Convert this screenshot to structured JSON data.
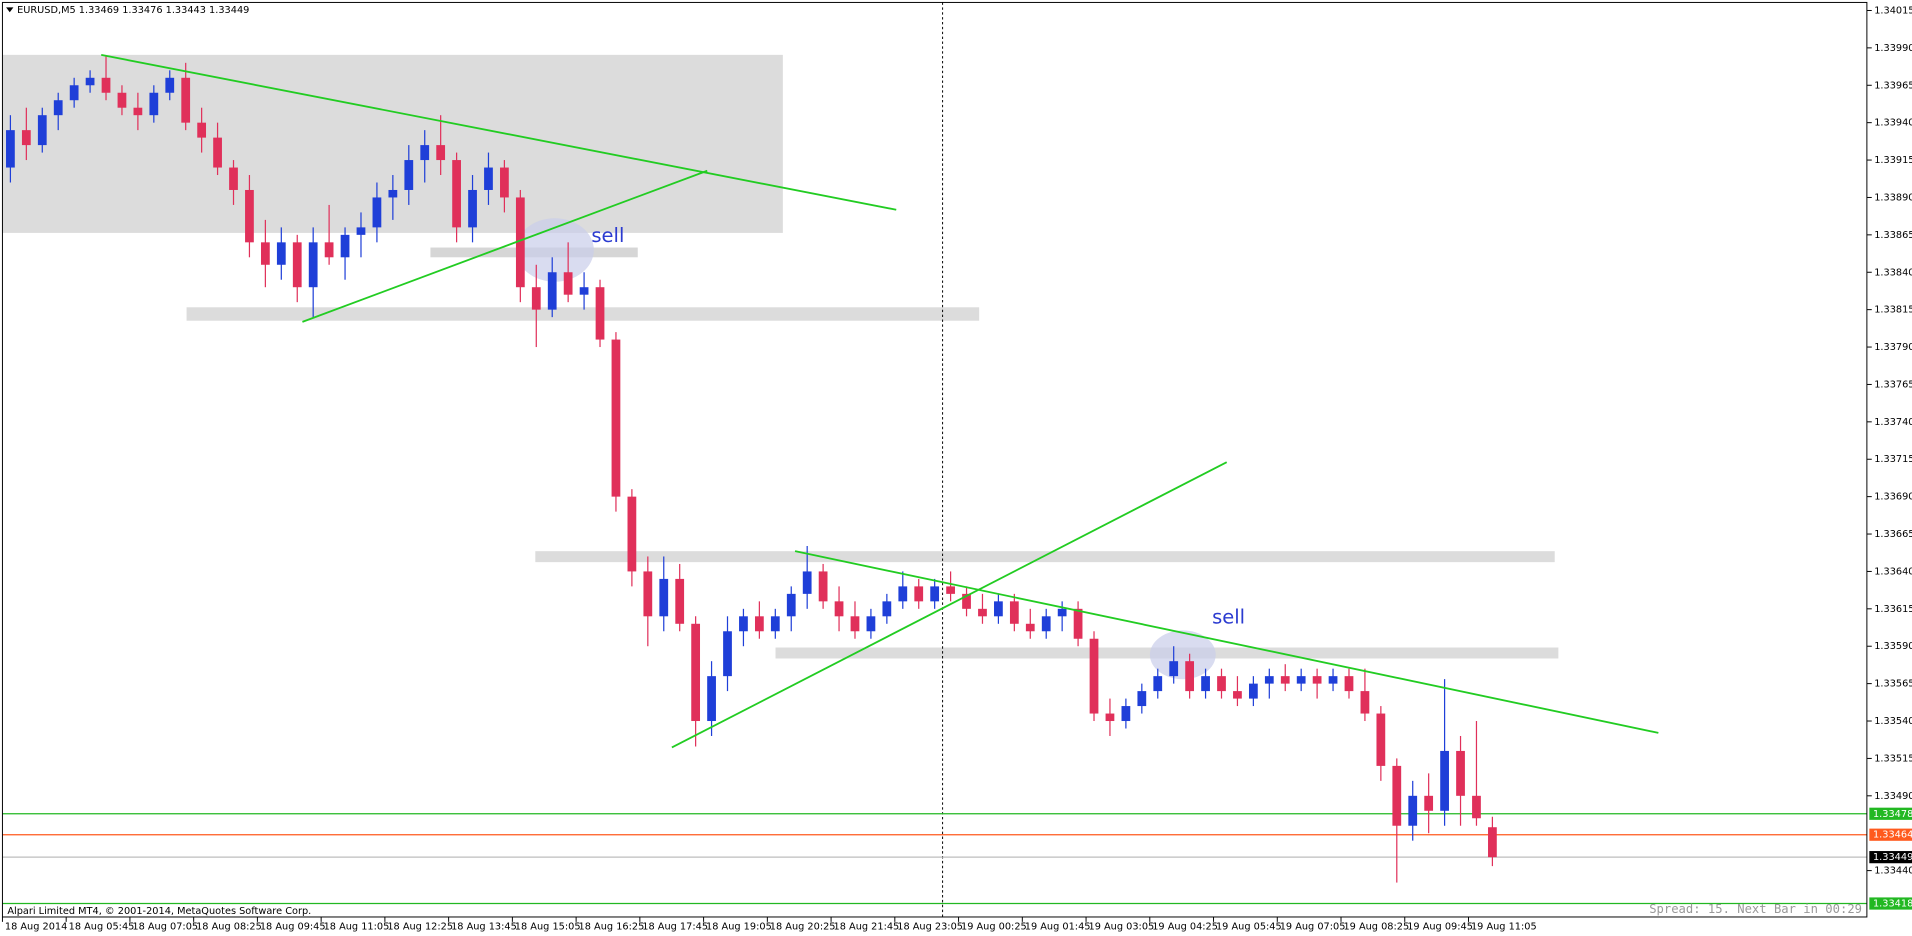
{
  "chart_data": {
    "type": "candlestick",
    "title": "EURUSD,M5  1.33469 1.33476 1.33443 1.33449",
    "copyright": "Alpari Limited MT4, © 2001-2014, MetaQuotes Software Corp.",
    "status": "Spread: 15. Next Bar in 00:29",
    "annotations": [
      "sell",
      "sell"
    ],
    "up_color": "#1f3fd8",
    "down_color": "#e0305a",
    "xlim": [
      0,
      117
    ],
    "ylim": [
      1.33409,
      1.34022
    ],
    "yticks": [
      1.34015,
      {
        "value": 1.3399,
        "label": "1.33990"
      },
      1.33965,
      {
        "value": 1.3394,
        "label": "1.33940"
      },
      1.33915,
      {
        "value": 1.3389,
        "label": "1.33890"
      },
      1.33865,
      {
        "value": 1.3384,
        "label": "1.33840"
      },
      1.33815,
      {
        "value": 1.3379,
        "label": "1.33790"
      },
      1.33765,
      {
        "value": 1.3374,
        "label": "1.33740"
      },
      1.33715,
      {
        "value": 1.3369,
        "label": "1.33690"
      },
      1.33665,
      {
        "value": 1.3364,
        "label": "1.33640"
      },
      1.33615,
      {
        "value": 1.3359,
        "label": "1.33590"
      },
      1.33565,
      {
        "value": 1.3354,
        "label": "1.33540"
      },
      1.33515,
      {
        "value": 1.3349,
        "label": "1.33490"
      },
      {
        "value": 1.3344,
        "label": "1.33440"
      }
    ],
    "xticks": [
      {
        "value": 0,
        "label": "18 Aug 2014"
      },
      {
        "value": 4,
        "label": "18 Aug 05:45"
      },
      {
        "value": 8,
        "label": "18 Aug 07:05"
      },
      {
        "value": 12,
        "label": "18 Aug 08:25"
      },
      {
        "value": 16,
        "label": "18 Aug 09:45"
      },
      {
        "value": 20,
        "label": "18 Aug 11:05"
      },
      {
        "value": 24,
        "label": "18 Aug 12:25"
      },
      {
        "value": 28,
        "label": "18 Aug 13:45"
      },
      {
        "value": 32,
        "label": "18 Aug 15:05"
      },
      {
        "value": 36,
        "label": "18 Aug 16:25"
      },
      {
        "value": 40,
        "label": "18 Aug 17:45"
      },
      {
        "value": 44,
        "label": "18 Aug 19:05"
      },
      {
        "value": 48,
        "label": "18 Aug 20:25"
      },
      {
        "value": 52,
        "label": "18 Aug 21:45"
      },
      {
        "value": 56,
        "label": "18 Aug 23:05"
      },
      {
        "value": 60,
        "label": "19 Aug 00:25"
      },
      {
        "value": 64,
        "label": "19 Aug 01:45"
      },
      {
        "value": 68,
        "label": "19 Aug 03:05"
      },
      {
        "value": 72,
        "label": "19 Aug 04:25"
      },
      {
        "value": 76,
        "label": "19 Aug 05:45"
      },
      {
        "value": 80,
        "label": "19 Aug 07:05"
      },
      {
        "value": 84,
        "label": "19 Aug 08:25"
      },
      {
        "value": 88,
        "label": "19 Aug 09:45"
      },
      {
        "value": 92,
        "label": "19 Aug 11:05"
      }
    ],
    "hlines": [
      {
        "value": 1.33478,
        "color": "#22b822"
      },
      {
        "value": 1.33464,
        "color": "#ff5a1e"
      },
      {
        "value": 1.33449,
        "color": "#000000"
      },
      {
        "value": 1.33418,
        "color": "#22b822"
      }
    ],
    "values": [
      [
        1.3391,
        1.33945,
        1.339,
        1.33935
      ],
      [
        1.33935,
        1.3395,
        1.33915,
        1.33925
      ],
      [
        1.33925,
        1.3395,
        1.3392,
        1.33945
      ],
      [
        1.33945,
        1.3396,
        1.33935,
        1.33955
      ],
      [
        1.33955,
        1.3397,
        1.3395,
        1.33965
      ],
      [
        1.33965,
        1.33975,
        1.3396,
        1.3397
      ],
      [
        1.3397,
        1.33985,
        1.33955,
        1.3396
      ],
      [
        1.3396,
        1.33965,
        1.33945,
        1.3395
      ],
      [
        1.3395,
        1.3396,
        1.33935,
        1.33945
      ],
      [
        1.33945,
        1.33965,
        1.3394,
        1.3396
      ],
      [
        1.3396,
        1.33975,
        1.33955,
        1.3397
      ],
      [
        1.3397,
        1.3398,
        1.33935,
        1.3394
      ],
      [
        1.3394,
        1.3395,
        1.3392,
        1.3393
      ],
      [
        1.3393,
        1.3394,
        1.33905,
        1.3391
      ],
      [
        1.3391,
        1.33915,
        1.33885,
        1.33895
      ],
      [
        1.33895,
        1.33905,
        1.3385,
        1.3386
      ],
      [
        1.3386,
        1.33875,
        1.3383,
        1.33845
      ],
      [
        1.33845,
        1.3387,
        1.33835,
        1.3386
      ],
      [
        1.3386,
        1.33865,
        1.3382,
        1.3383
      ],
      [
        1.3383,
        1.3387,
        1.3381,
        1.3386
      ],
      [
        1.3386,
        1.33885,
        1.33845,
        1.3385
      ],
      [
        1.3385,
        1.3387,
        1.33835,
        1.33865
      ],
      [
        1.33865,
        1.3388,
        1.3385,
        1.3387
      ],
      [
        1.3387,
        1.339,
        1.3386,
        1.3389
      ],
      [
        1.3389,
        1.33905,
        1.33875,
        1.33895
      ],
      [
        1.33895,
        1.33925,
        1.33885,
        1.33915
      ],
      [
        1.33915,
        1.33935,
        1.339,
        1.33925
      ],
      [
        1.33925,
        1.33945,
        1.33905,
        1.33915
      ],
      [
        1.33915,
        1.3392,
        1.3386,
        1.3387
      ],
      [
        1.3387,
        1.33905,
        1.3386,
        1.33895
      ],
      [
        1.33895,
        1.3392,
        1.33885,
        1.3391
      ],
      [
        1.3391,
        1.33915,
        1.3388,
        1.3389
      ],
      [
        1.3389,
        1.33895,
        1.3382,
        1.3383
      ],
      [
        1.3383,
        1.33845,
        1.3379,
        1.33815
      ],
      [
        1.33815,
        1.3385,
        1.3381,
        1.3384
      ],
      [
        1.3384,
        1.3386,
        1.3382,
        1.33825
      ],
      [
        1.33825,
        1.3384,
        1.33815,
        1.3383
      ],
      [
        1.3383,
        1.33835,
        1.3379,
        1.33795
      ],
      [
        1.33795,
        1.338,
        1.3368,
        1.3369
      ],
      [
        1.3369,
        1.33695,
        1.3363,
        1.3364
      ],
      [
        1.3364,
        1.3365,
        1.3359,
        1.3361
      ],
      [
        1.3361,
        1.3365,
        1.336,
        1.33635
      ],
      [
        1.33635,
        1.33645,
        1.336,
        1.33605
      ],
      [
        1.33605,
        1.3361,
        1.33523,
        1.3354
      ],
      [
        1.3354,
        1.3358,
        1.3353,
        1.3357
      ],
      [
        1.3357,
        1.3361,
        1.3356,
        1.336
      ],
      [
        1.336,
        1.33615,
        1.3359,
        1.3361
      ],
      [
        1.3361,
        1.3362,
        1.33595,
        1.336
      ],
      [
        1.336,
        1.33615,
        1.33595,
        1.3361
      ],
      [
        1.3361,
        1.3363,
        1.336,
        1.33625
      ],
      [
        1.33625,
        1.33657,
        1.33615,
        1.3364
      ],
      [
        1.3364,
        1.33645,
        1.33615,
        1.3362
      ],
      [
        1.3362,
        1.3363,
        1.336,
        1.3361
      ],
      [
        1.3361,
        1.3362,
        1.33595,
        1.336
      ],
      [
        1.336,
        1.33615,
        1.33595,
        1.3361
      ],
      [
        1.3361,
        1.33625,
        1.33605,
        1.3362
      ],
      [
        1.3362,
        1.3364,
        1.33615,
        1.3363
      ],
      [
        1.3363,
        1.33635,
        1.33615,
        1.3362
      ],
      [
        1.3362,
        1.33635,
        1.33615,
        1.3363
      ],
      [
        1.3363,
        1.3364,
        1.3362,
        1.33625
      ],
      [
        1.33625,
        1.3363,
        1.3361,
        1.33615
      ],
      [
        1.33615,
        1.33625,
        1.33605,
        1.3361
      ],
      [
        1.3361,
        1.33625,
        1.33605,
        1.3362
      ],
      [
        1.3362,
        1.33625,
        1.336,
        1.33605
      ],
      [
        1.33605,
        1.33615,
        1.33595,
        1.336
      ],
      [
        1.336,
        1.33615,
        1.33595,
        1.3361
      ],
      [
        1.3361,
        1.3362,
        1.336,
        1.33615
      ],
      [
        1.33615,
        1.3362,
        1.3359,
        1.33595
      ],
      [
        1.33595,
        1.336,
        1.3354,
        1.33545
      ],
      [
        1.33545,
        1.33555,
        1.3353,
        1.3354
      ],
      [
        1.3354,
        1.33555,
        1.33535,
        1.3355
      ],
      [
        1.3355,
        1.33565,
        1.33545,
        1.3356
      ],
      [
        1.3356,
        1.33575,
        1.33555,
        1.3357
      ],
      [
        1.3357,
        1.3359,
        1.33565,
        1.3358
      ],
      [
        1.3358,
        1.33585,
        1.33555,
        1.3356
      ],
      [
        1.3356,
        1.33575,
        1.33555,
        1.3357
      ],
      [
        1.3357,
        1.33575,
        1.33555,
        1.3356
      ],
      [
        1.3356,
        1.3357,
        1.3355,
        1.33555
      ],
      [
        1.33555,
        1.3357,
        1.3355,
        1.33565
      ],
      [
        1.33565,
        1.33575,
        1.33555,
        1.3357
      ],
      [
        1.3357,
        1.33578,
        1.3356,
        1.33565
      ],
      [
        1.33565,
        1.33575,
        1.3356,
        1.3357
      ],
      [
        1.3357,
        1.33575,
        1.33555,
        1.33565
      ],
      [
        1.33565,
        1.33575,
        1.3356,
        1.3357
      ],
      [
        1.3357,
        1.33575,
        1.33555,
        1.3356
      ],
      [
        1.3356,
        1.33575,
        1.3354,
        1.33545
      ],
      [
        1.33545,
        1.3355,
        1.335,
        1.3351
      ],
      [
        1.3351,
        1.33515,
        1.33432,
        1.3347
      ],
      [
        1.3347,
        1.335,
        1.3346,
        1.3349
      ],
      [
        1.3349,
        1.33505,
        1.33465,
        1.3348
      ],
      [
        1.3348,
        1.33568,
        1.3347,
        1.3352
      ],
      [
        1.3352,
        1.3353,
        1.3347,
        1.3349
      ],
      [
        1.3349,
        1.3354,
        1.3347,
        1.33475
      ],
      [
        1.33469,
        1.33476,
        1.33443,
        1.33449
      ]
    ]
  }
}
